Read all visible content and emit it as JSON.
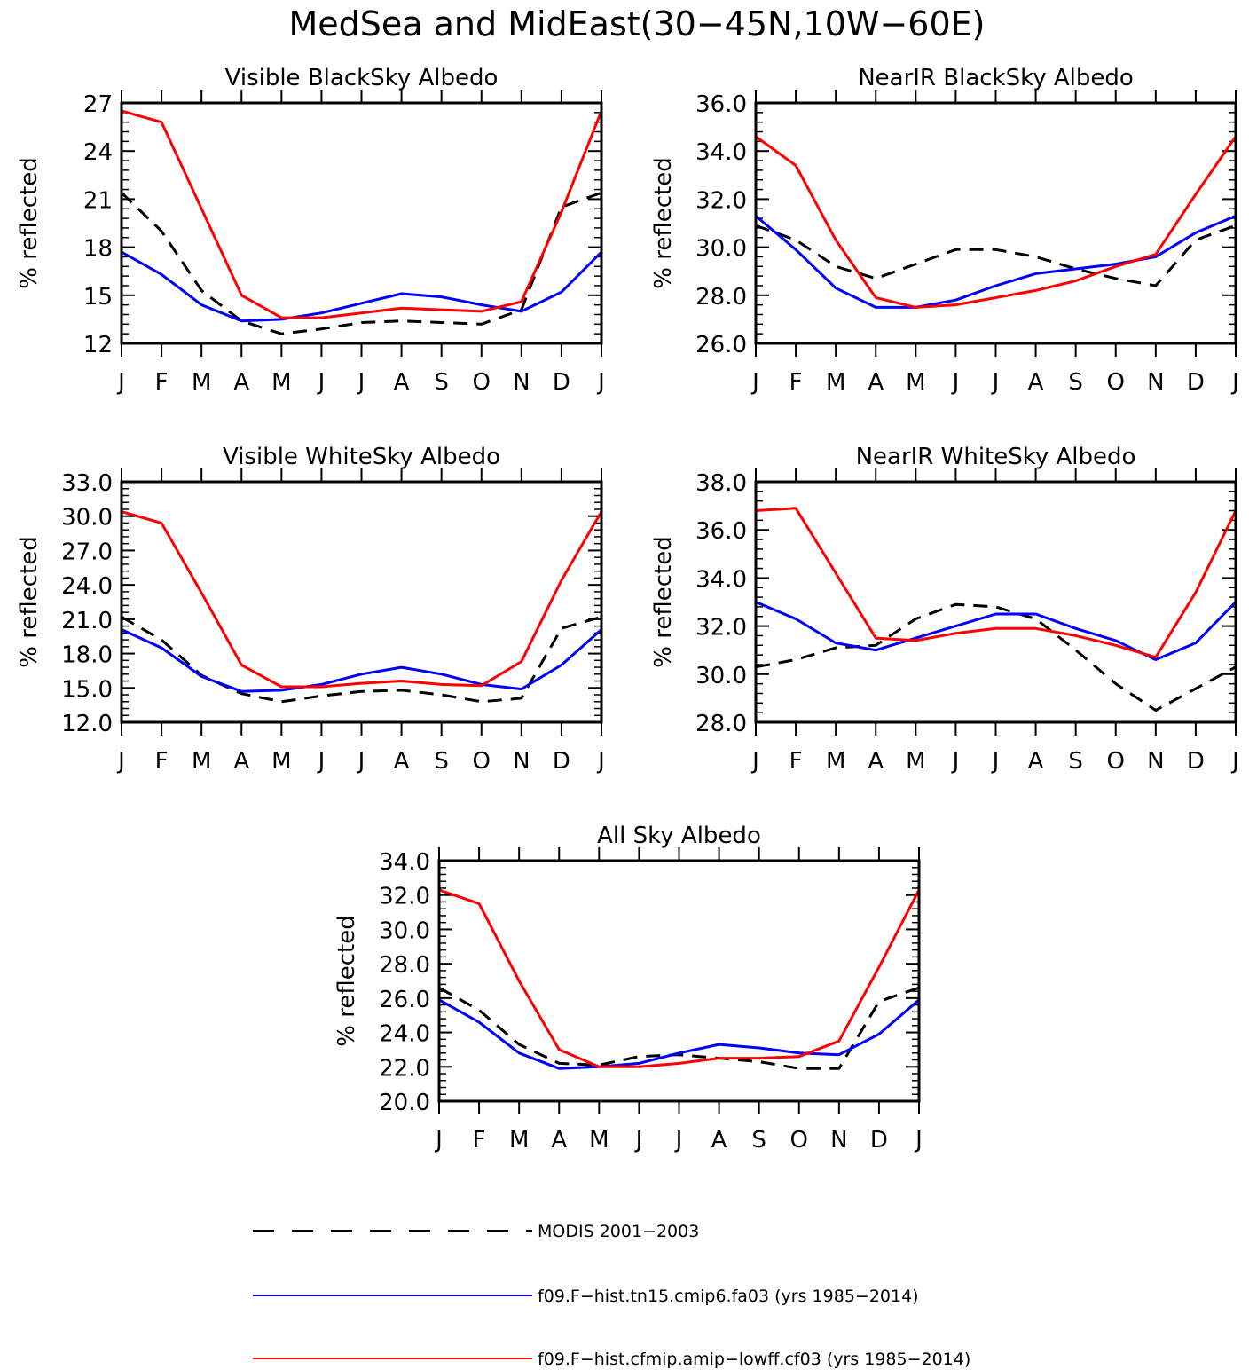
{
  "figure": {
    "title": "MedSea and MidEast(30−45N,10W−60E)"
  },
  "style": {
    "modis_color": "#000000",
    "cmip6_color": "#0000ff",
    "cfmip_color": "#ff0000"
  },
  "legend": {
    "entries": [
      {
        "key": "modis",
        "label": "MODIS 2001−2003"
      },
      {
        "key": "cmip6",
        "label": "f09.F−hist.tn15.cmip6.fa03 (yrs 1985−2014)"
      },
      {
        "key": "cfmip",
        "label": "f09.F−hist.cfmip.amip−lowff.cf03 (yrs 1985−2014)"
      }
    ]
  },
  "chart_data": [
    {
      "id": "vis_black",
      "type": "line",
      "title": "Visible BlackSky Albedo",
      "ylabel": "% reflected",
      "categories": [
        "J",
        "F",
        "M",
        "A",
        "M",
        "J",
        "J",
        "A",
        "S",
        "O",
        "N",
        "D",
        "J"
      ],
      "ylim": [
        12,
        27
      ],
      "yticks": [
        "12",
        "15",
        "18",
        "21",
        "24",
        "27"
      ],
      "series": [
        {
          "key": "modis",
          "values": [
            21.4,
            19.0,
            15.3,
            13.4,
            12.6,
            12.9,
            13.3,
            13.4,
            13.3,
            13.2,
            14.1,
            20.5,
            21.4
          ]
        },
        {
          "key": "cmip6",
          "values": [
            17.7,
            16.3,
            14.4,
            13.4,
            13.5,
            13.9,
            14.5,
            15.1,
            14.9,
            14.4,
            14.0,
            15.2,
            17.7
          ]
        },
        {
          "key": "cfmip",
          "values": [
            26.5,
            25.8,
            20.4,
            15.0,
            13.6,
            13.6,
            13.9,
            14.2,
            14.1,
            14.0,
            14.6,
            20.2,
            26.5
          ]
        }
      ]
    },
    {
      "id": "nir_black",
      "type": "line",
      "title": "NearIR BlackSky Albedo",
      "ylabel": "% reflected",
      "categories": [
        "J",
        "F",
        "M",
        "A",
        "M",
        "J",
        "J",
        "A",
        "S",
        "O",
        "N",
        "D",
        "J"
      ],
      "ylim": [
        26,
        36
      ],
      "yticks": [
        "26.0",
        "28.0",
        "30.0",
        "32.0",
        "34.0",
        "36.0"
      ],
      "series": [
        {
          "key": "modis",
          "values": [
            30.9,
            30.3,
            29.2,
            28.7,
            29.3,
            29.9,
            29.9,
            29.6,
            29.1,
            28.7,
            28.4,
            30.3,
            30.9
          ]
        },
        {
          "key": "cmip6",
          "values": [
            31.3,
            29.9,
            28.3,
            27.5,
            27.5,
            27.8,
            28.4,
            28.9,
            29.1,
            29.3,
            29.6,
            30.6,
            31.3
          ]
        },
        {
          "key": "cfmip",
          "values": [
            34.6,
            33.4,
            30.3,
            27.9,
            27.5,
            27.6,
            27.9,
            28.2,
            28.6,
            29.2,
            29.7,
            32.2,
            34.6
          ]
        }
      ]
    },
    {
      "id": "vis_white",
      "type": "line",
      "title": "Visible WhiteSky Albedo",
      "ylabel": "% reflected",
      "categories": [
        "J",
        "F",
        "M",
        "A",
        "M",
        "J",
        "J",
        "A",
        "S",
        "O",
        "N",
        "D",
        "J"
      ],
      "ylim": [
        12,
        33
      ],
      "yticks": [
        "12.0",
        "15.0",
        "18.0",
        "21.0",
        "24.0",
        "27.0",
        "30.0",
        "33.0"
      ],
      "series": [
        {
          "key": "modis",
          "values": [
            21.2,
            19.2,
            16.1,
            14.5,
            13.8,
            14.3,
            14.7,
            14.8,
            14.4,
            13.8,
            14.1,
            20.2,
            21.2
          ]
        },
        {
          "key": "cmip6",
          "values": [
            20.1,
            18.5,
            16.0,
            14.7,
            14.8,
            15.3,
            16.2,
            16.8,
            16.2,
            15.3,
            14.9,
            17.0,
            20.1
          ]
        },
        {
          "key": "cfmip",
          "values": [
            30.4,
            29.4,
            23.3,
            17.0,
            15.1,
            15.1,
            15.4,
            15.6,
            15.3,
            15.2,
            17.3,
            24.4,
            30.4
          ]
        }
      ]
    },
    {
      "id": "nir_white",
      "type": "line",
      "title": "NearIR WhiteSky Albedo",
      "ylabel": "% reflected",
      "categories": [
        "J",
        "F",
        "M",
        "A",
        "M",
        "J",
        "J",
        "A",
        "S",
        "O",
        "N",
        "D",
        "J"
      ],
      "ylim": [
        28,
        38
      ],
      "yticks": [
        "28.0",
        "30.0",
        "32.0",
        "34.0",
        "36.0",
        "38.0"
      ],
      "series": [
        {
          "key": "modis",
          "values": [
            30.3,
            30.6,
            31.1,
            31.2,
            32.3,
            32.9,
            32.8,
            32.3,
            31.0,
            29.6,
            28.5,
            29.4,
            30.3
          ]
        },
        {
          "key": "cmip6",
          "values": [
            33.0,
            32.3,
            31.3,
            31.0,
            31.5,
            32.0,
            32.5,
            32.5,
            31.9,
            31.4,
            30.6,
            31.3,
            33.0
          ]
        },
        {
          "key": "cfmip",
          "values": [
            36.8,
            36.9,
            34.2,
            31.5,
            31.4,
            31.7,
            31.9,
            31.9,
            31.6,
            31.2,
            30.7,
            33.4,
            36.8
          ]
        }
      ]
    },
    {
      "id": "all_sky",
      "type": "line",
      "title": "All Sky Albedo",
      "ylabel": "% reflected",
      "categories": [
        "J",
        "F",
        "M",
        "A",
        "M",
        "J",
        "J",
        "A",
        "S",
        "O",
        "N",
        "D",
        "J"
      ],
      "ylim": [
        20,
        34
      ],
      "yticks": [
        "20.0",
        "22.0",
        "24.0",
        "26.0",
        "28.0",
        "30.0",
        "32.0",
        "34.0"
      ],
      "series": [
        {
          "key": "modis",
          "values": [
            26.6,
            25.3,
            23.3,
            22.2,
            22.1,
            22.6,
            22.7,
            22.5,
            22.3,
            21.9,
            21.9,
            25.8,
            26.6
          ]
        },
        {
          "key": "cmip6",
          "values": [
            25.9,
            24.6,
            22.8,
            21.9,
            22.0,
            22.2,
            22.8,
            23.3,
            23.1,
            22.8,
            22.7,
            23.9,
            25.9
          ]
        },
        {
          "key": "cfmip",
          "values": [
            32.3,
            31.5,
            27.0,
            23.0,
            22.0,
            22.0,
            22.2,
            22.5,
            22.5,
            22.6,
            23.5,
            27.8,
            32.3
          ]
        }
      ]
    }
  ]
}
